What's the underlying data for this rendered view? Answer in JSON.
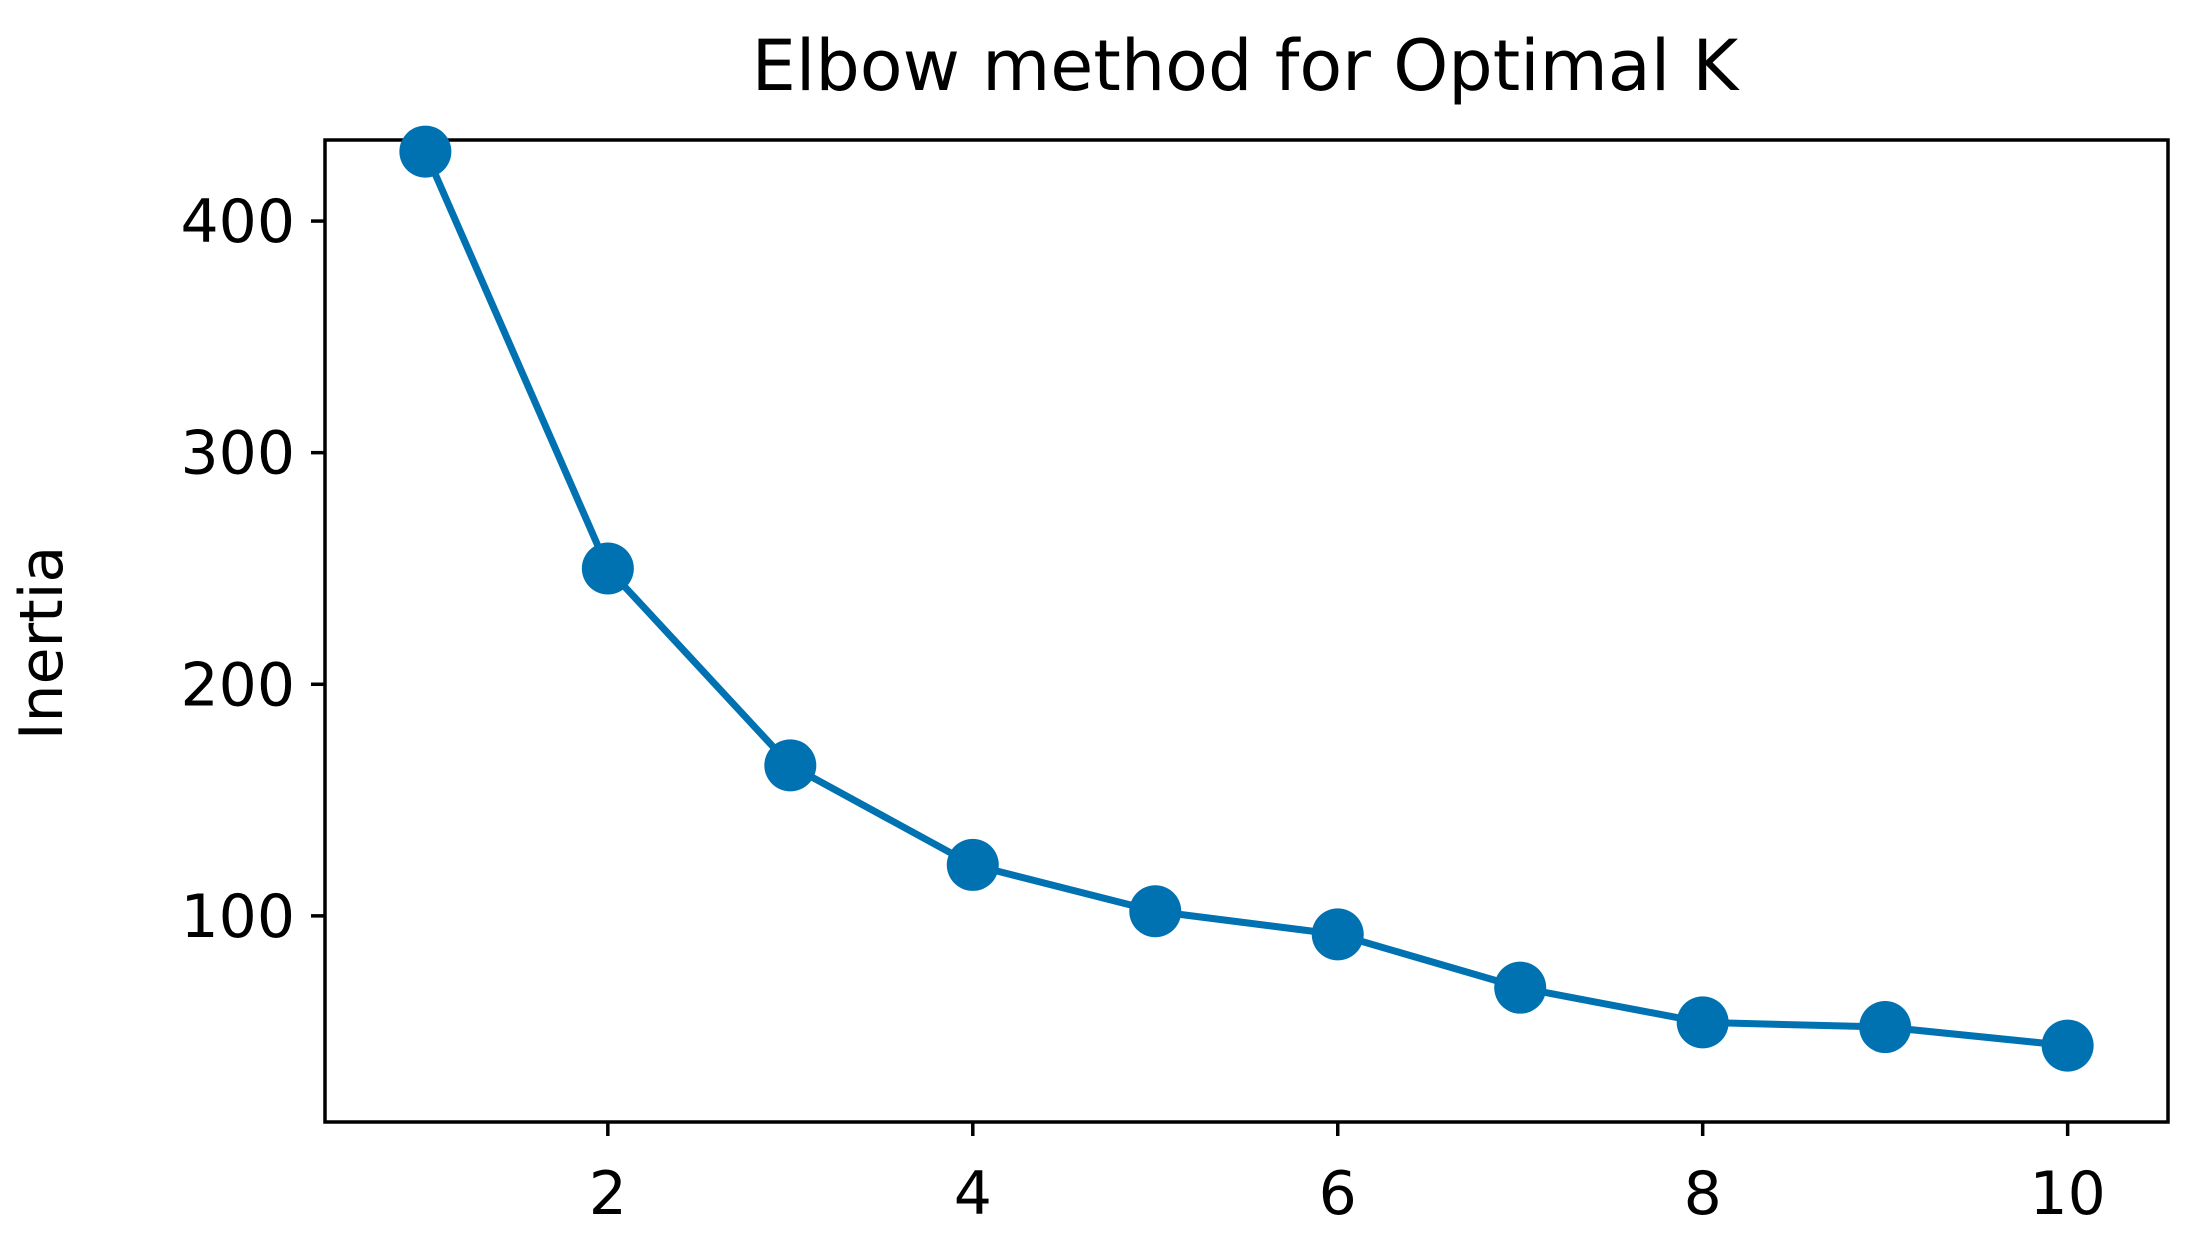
{
  "chart_data": {
    "type": "line",
    "title": "Elbow method for Optimal K",
    "xlabel": "",
    "ylabel": "Inertia",
    "x": [
      1,
      2,
      3,
      4,
      5,
      6,
      7,
      8,
      9,
      10
    ],
    "series": [
      {
        "values": [
          430,
          250,
          165,
          122,
          102,
          92,
          69,
          54,
          52,
          44
        ],
        "color": "#0072B2",
        "marker": "circle"
      }
    ],
    "xlim": [
      0.45,
      10.55
    ],
    "ylim": [
      11,
      435
    ],
    "xticks": [
      2,
      4,
      6,
      8,
      10
    ],
    "yticks": [
      100,
      200,
      300,
      400
    ],
    "grid": false
  }
}
